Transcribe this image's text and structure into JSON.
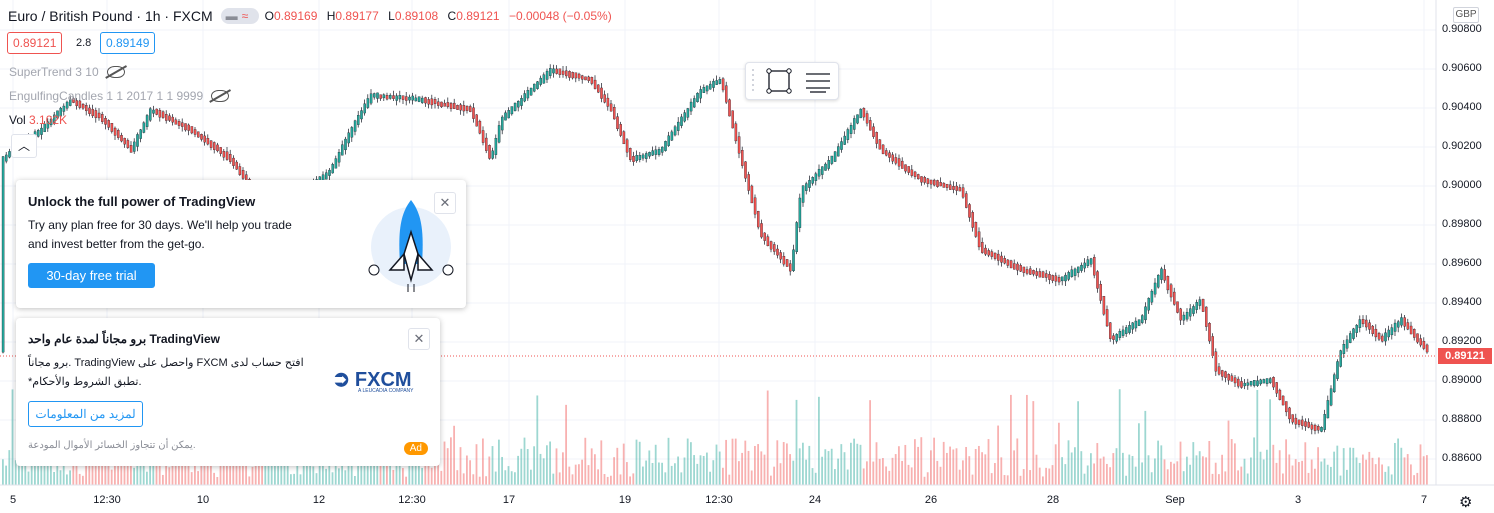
{
  "header": {
    "symbol": "Euro / British Pound · 1h · FXCM",
    "open_label": "O",
    "open": "0.89169",
    "high_label": "H",
    "high": "0.89177",
    "low_label": "L",
    "low": "0.89108",
    "close_label": "C",
    "close": "0.89121",
    "change": "−0.00048 (−0.05%)"
  },
  "quote": {
    "bid": "0.89121",
    "spread": "2.8",
    "ask": "0.89149"
  },
  "indicators": [
    {
      "label": "SuperTrend 3 10"
    },
    {
      "label": "EngulfingCandles 1 1 2017 1 1 9999"
    },
    {
      "label": "Vol",
      "value": "3.102K"
    }
  ],
  "price_axis": {
    "currency": "GBP",
    "labels": [
      "0.90800",
      "0.90600",
      "0.90400",
      "0.90200",
      "0.90000",
      "0.89800",
      "0.89600",
      "0.89400",
      "0.89200",
      "0.89000",
      "0.88800",
      "0.88600"
    ],
    "current": "0.89121"
  },
  "time_axis": {
    "labels": [
      "5",
      "12:30",
      "10",
      "12",
      "12:30",
      "17",
      "19",
      "12:30",
      "24",
      "26",
      "28",
      "Sep",
      "3",
      "7"
    ]
  },
  "promo": {
    "title": "Unlock the full power of TradingView",
    "line1": "Try any plan free for 30 days. We'll help you trade",
    "line2": "and invest better from the get-go.",
    "cta": "30-day free trial"
  },
  "ad": {
    "title": "برو مجاناً لمدة عام واحد TradingView",
    "line1": "برو مجاناً. TradingView واحصل على FXCM افتح حساب لدى",
    "line2": "*تطبق الشروط والأحكام.",
    "cta": "لمزيد من المعلومات",
    "disclaimer": "يمكن أن تتجاوز الخسائر الأموال المودعة.",
    "badge": "Ad",
    "logo_text": "FXCM",
    "logo_sub": "A LEUCADIA COMPANY"
  },
  "colors": {
    "up": "#26a69a",
    "down": "#ef5350",
    "accent": "#2196f3"
  }
}
